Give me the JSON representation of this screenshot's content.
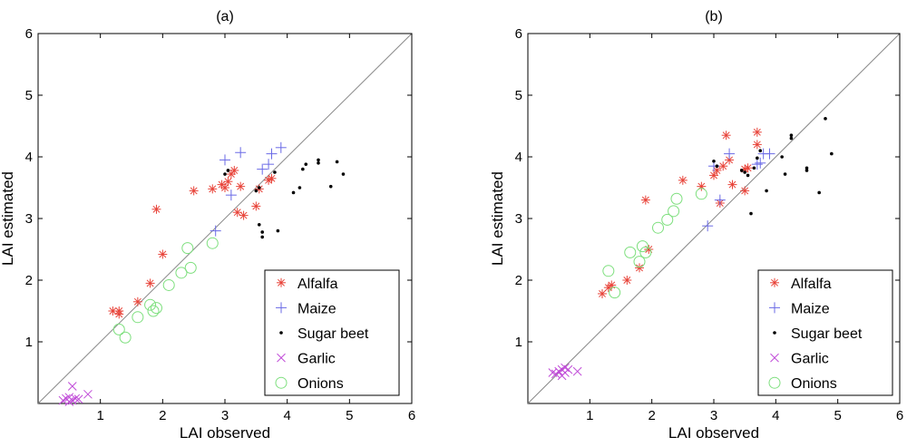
{
  "chart_data": [
    {
      "type": "scatter",
      "title": "(a)",
      "xlabel": "LAI observed",
      "ylabel": "LAI estimated",
      "xlim": [
        0,
        6
      ],
      "ylim": [
        0,
        6
      ],
      "xticks": [
        1,
        2,
        3,
        4,
        5,
        6
      ],
      "yticks": [
        1,
        2,
        3,
        4,
        5,
        6
      ],
      "reference_line": "1:1",
      "legend_position": "bottom-right",
      "series": [
        {
          "name": "Alfalfa",
          "marker": "asterisk",
          "color": "#e8443a",
          "points": [
            [
              1.2,
              1.5
            ],
            [
              1.3,
              1.5
            ],
            [
              1.3,
              1.45
            ],
            [
              1.6,
              1.65
            ],
            [
              1.8,
              1.95
            ],
            [
              1.9,
              3.15
            ],
            [
              2.0,
              2.42
            ],
            [
              2.5,
              3.45
            ],
            [
              2.8,
              3.48
            ],
            [
              2.95,
              3.55
            ],
            [
              3.0,
              3.5
            ],
            [
              3.05,
              3.6
            ],
            [
              3.1,
              3.72
            ],
            [
              3.15,
              3.78
            ],
            [
              3.2,
              3.1
            ],
            [
              3.25,
              3.52
            ],
            [
              3.3,
              3.05
            ],
            [
              3.5,
              3.2
            ],
            [
              3.55,
              3.48
            ],
            [
              3.7,
              3.62
            ],
            [
              3.75,
              3.65
            ]
          ]
        },
        {
          "name": "Maize",
          "marker": "plus",
          "color": "#6a6ae6",
          "points": [
            [
              2.85,
              2.8
            ],
            [
              3.0,
              3.95
            ],
            [
              3.1,
              3.38
            ],
            [
              3.25,
              4.07
            ],
            [
              3.6,
              3.8
            ],
            [
              3.7,
              3.88
            ],
            [
              3.75,
              4.05
            ],
            [
              3.9,
              4.15
            ]
          ]
        },
        {
          "name": "Sugar beet",
          "marker": "dot",
          "color": "#000000",
          "points": [
            [
              3.0,
              3.72
            ],
            [
              3.05,
              3.78
            ],
            [
              3.5,
              3.45
            ],
            [
              3.55,
              3.5
            ],
            [
              3.6,
              2.7
            ],
            [
              3.6,
              2.78
            ],
            [
              3.55,
              2.9
            ],
            [
              3.8,
              3.75
            ],
            [
              3.85,
              2.8
            ],
            [
              4.1,
              3.42
            ],
            [
              4.2,
              3.5
            ],
            [
              4.25,
              3.8
            ],
            [
              4.3,
              3.88
            ],
            [
              4.5,
              3.9
            ],
            [
              4.5,
              3.95
            ],
            [
              4.7,
              3.52
            ],
            [
              4.8,
              3.92
            ],
            [
              4.9,
              3.72
            ]
          ]
        },
        {
          "name": "Garlic",
          "marker": "cross",
          "color": "#c04bd8",
          "points": [
            [
              0.4,
              0.05
            ],
            [
              0.45,
              0.08
            ],
            [
              0.5,
              0.1
            ],
            [
              0.5,
              0.03
            ],
            [
              0.55,
              0.05
            ],
            [
              0.55,
              0.28
            ],
            [
              0.6,
              0.08
            ],
            [
              0.65,
              0.07
            ],
            [
              0.8,
              0.15
            ]
          ]
        },
        {
          "name": "Onions",
          "marker": "circle",
          "color": "#7ddf7d",
          "points": [
            [
              1.3,
              1.2
            ],
            [
              1.4,
              1.07
            ],
            [
              1.6,
              1.4
            ],
            [
              1.8,
              1.6
            ],
            [
              1.85,
              1.5
            ],
            [
              1.9,
              1.55
            ],
            [
              2.1,
              1.92
            ],
            [
              2.3,
              2.12
            ],
            [
              2.4,
              2.52
            ],
            [
              2.45,
              2.2
            ],
            [
              2.8,
              2.6
            ]
          ]
        }
      ]
    },
    {
      "type": "scatter",
      "title": "(b)",
      "xlabel": "LAI observed",
      "ylabel": "LAI estimated",
      "xlim": [
        0,
        6
      ],
      "ylim": [
        0,
        6
      ],
      "xticks": [
        1,
        2,
        3,
        4,
        5,
        6
      ],
      "yticks": [
        1,
        2,
        3,
        4,
        5,
        6
      ],
      "reference_line": "1:1",
      "legend_position": "bottom-right",
      "series": [
        {
          "name": "Alfalfa",
          "marker": "asterisk",
          "color": "#e8443a",
          "points": [
            [
              1.2,
              1.78
            ],
            [
              1.3,
              1.88
            ],
            [
              1.35,
              1.92
            ],
            [
              1.6,
              2.0
            ],
            [
              1.8,
              2.2
            ],
            [
              1.9,
              3.3
            ],
            [
              1.95,
              2.5
            ],
            [
              2.5,
              3.62
            ],
            [
              2.8,
              3.52
            ],
            [
              3.0,
              3.7
            ],
            [
              3.05,
              3.78
            ],
            [
              3.1,
              3.25
            ],
            [
              3.15,
              3.85
            ],
            [
              3.2,
              4.35
            ],
            [
              3.25,
              3.95
            ],
            [
              3.3,
              3.55
            ],
            [
              3.5,
              3.45
            ],
            [
              3.5,
              3.8
            ],
            [
              3.55,
              3.82
            ],
            [
              3.7,
              4.4
            ],
            [
              3.7,
              4.2
            ]
          ]
        },
        {
          "name": "Maize",
          "marker": "plus",
          "color": "#6a6ae6",
          "points": [
            [
              2.9,
              2.88
            ],
            [
              3.0,
              3.85
            ],
            [
              3.1,
              3.3
            ],
            [
              3.25,
              4.05
            ],
            [
              3.7,
              3.88
            ],
            [
              3.75,
              3.9
            ],
            [
              3.8,
              4.05
            ],
            [
              3.9,
              4.05
            ]
          ]
        },
        {
          "name": "Sugar beet",
          "marker": "dot",
          "color": "#000000",
          "points": [
            [
              3.0,
              3.93
            ],
            [
              3.05,
              3.85
            ],
            [
              3.45,
              3.78
            ],
            [
              3.5,
              3.75
            ],
            [
              3.55,
              3.7
            ],
            [
              3.6,
              3.08
            ],
            [
              3.65,
              3.82
            ],
            [
              3.7,
              3.98
            ],
            [
              3.75,
              4.1
            ],
            [
              3.85,
              3.45
            ],
            [
              4.1,
              4.0
            ],
            [
              4.15,
              3.72
            ],
            [
              4.25,
              4.3
            ],
            [
              4.25,
              4.35
            ],
            [
              4.5,
              3.82
            ],
            [
              4.5,
              3.78
            ],
            [
              4.7,
              3.42
            ],
            [
              4.8,
              4.62
            ],
            [
              4.9,
              4.05
            ]
          ]
        },
        {
          "name": "Garlic",
          "marker": "cross",
          "color": "#c04bd8",
          "points": [
            [
              0.4,
              0.5
            ],
            [
              0.45,
              0.48
            ],
            [
              0.5,
              0.52
            ],
            [
              0.55,
              0.45
            ],
            [
              0.55,
              0.55
            ],
            [
              0.6,
              0.5
            ],
            [
              0.6,
              0.58
            ],
            [
              0.65,
              0.55
            ],
            [
              0.8,
              0.52
            ]
          ]
        },
        {
          "name": "Onions",
          "marker": "circle",
          "color": "#7ddf7d",
          "points": [
            [
              1.3,
              2.15
            ],
            [
              1.4,
              1.8
            ],
            [
              1.65,
              2.45
            ],
            [
              1.8,
              2.3
            ],
            [
              1.85,
              2.55
            ],
            [
              1.9,
              2.45
            ],
            [
              2.1,
              2.85
            ],
            [
              2.25,
              2.98
            ],
            [
              2.35,
              3.12
            ],
            [
              2.4,
              3.32
            ],
            [
              2.8,
              3.4
            ]
          ]
        }
      ]
    }
  ]
}
